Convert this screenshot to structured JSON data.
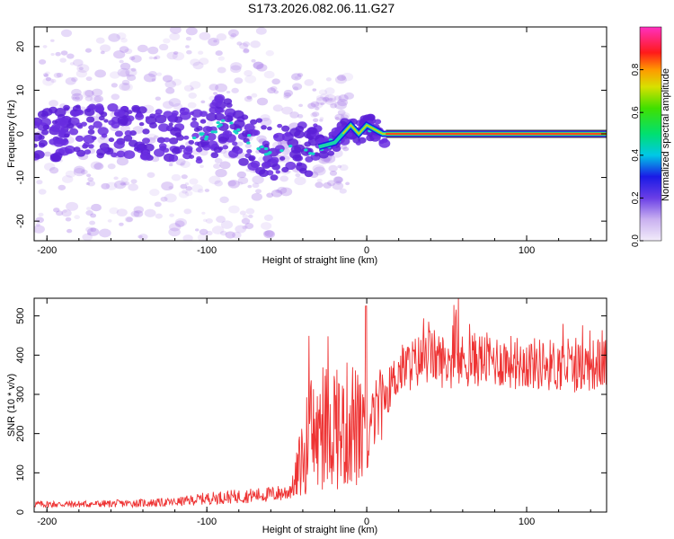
{
  "title": "S173.2026.082.06.11.G27",
  "colors": {
    "line": "#ee3333",
    "axis": "#000000",
    "background": "#ffffff"
  },
  "chart_data": [
    {
      "type": "heatmap",
      "xlabel": "Height of straight line (km)",
      "ylabel": "Frequency (Hz)",
      "xlim": [
        -208,
        150
      ],
      "ylim": [
        -24.5,
        24.5
      ],
      "xticks": [
        -200,
        -100,
        0,
        100
      ],
      "xticklabels": [
        "-200",
        "-100",
        "0",
        "100"
      ],
      "yticks": [
        -20,
        -10,
        0,
        10,
        20
      ],
      "yticklabels": [
        "-20",
        "-10",
        "0",
        "10",
        "20"
      ],
      "colorbar": {
        "label": "Normalized spectral amplitude",
        "range": [
          0,
          1
        ],
        "ticks": [
          0.0,
          0.2,
          0.4,
          0.6,
          0.8
        ],
        "ticklabels": [
          "0.0",
          "0.2",
          "0.4",
          "0.6",
          "0.8"
        ]
      },
      "ridge": {
        "x": [
          -208,
          -180,
          -150,
          -120,
          -100,
          -90,
          -80,
          -70,
          -60,
          -50,
          -40,
          -30,
          -20,
          -15,
          -10,
          -5,
          0,
          5,
          10,
          12,
          150
        ],
        "y": [
          0,
          0.5,
          0,
          0,
          -1,
          3,
          0,
          -2,
          -5,
          -3,
          -4,
          -3,
          -2,
          0,
          2,
          0,
          2,
          1,
          0,
          0,
          0
        ]
      }
    },
    {
      "type": "line",
      "xlabel": "Height of straight line (km)",
      "ylabel": "SNR (10 * v/v)",
      "xlim": [
        -208,
        150
      ],
      "ylim": [
        0,
        545
      ],
      "xticks": [
        -200,
        -100,
        0,
        100
      ],
      "xticklabels": [
        "-200",
        "-100",
        "0",
        "100"
      ],
      "yticks": [
        0,
        100,
        200,
        300,
        400,
        500
      ],
      "yticklabels": [
        "0",
        "100",
        "200",
        "300",
        "400",
        "500"
      ],
      "series": [
        {
          "name": "SNR",
          "x": [
            -208,
            -180,
            -150,
            -120,
            -100,
            -80,
            -60,
            -50,
            -45,
            -40,
            -35,
            -30,
            -25,
            -20,
            -15,
            -10,
            -5,
            -2,
            0,
            1,
            3,
            8,
            15,
            20,
            30,
            40,
            50,
            70,
            100,
            130,
            150
          ],
          "y": [
            20,
            20,
            22,
            25,
            35,
            40,
            45,
            50,
            70,
            150,
            210,
            180,
            220,
            230,
            200,
            240,
            200,
            180,
            60,
            190,
            230,
            270,
            320,
            360,
            380,
            400,
            380,
            390,
            380,
            370,
            380
          ]
        }
      ]
    }
  ]
}
